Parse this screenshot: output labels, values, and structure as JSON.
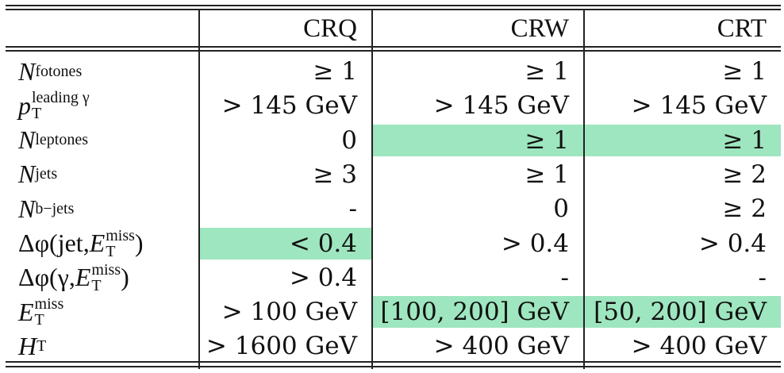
{
  "columns": [
    "CRQ",
    "CRW",
    "CRT"
  ],
  "rows": [
    {
      "label": {
        "main": "N",
        "sub": "fotones"
      },
      "values": [
        "≥ 1",
        "≥ 1",
        "≥ 1"
      ],
      "highlight": [
        false,
        false,
        false
      ]
    },
    {
      "label": {
        "main": "p",
        "sub": "T",
        "sup": "leading γ"
      },
      "values": [
        "> 145 GeV",
        "> 145 GeV",
        "> 145 GeV"
      ],
      "highlight": [
        false,
        false,
        false
      ]
    },
    {
      "label": {
        "main": "N",
        "sub": "leptones"
      },
      "values": [
        "0",
        "≥ 1",
        "≥ 1"
      ],
      "highlight": [
        false,
        true,
        true
      ]
    },
    {
      "label": {
        "main": "N",
        "sub": "jets"
      },
      "values": [
        "≥ 3",
        "≥ 1",
        "≥ 2"
      ],
      "highlight": [
        false,
        false,
        false
      ]
    },
    {
      "label": {
        "main": "N",
        "sub": "b−jets"
      },
      "values": [
        "-",
        "0",
        "≥ 2"
      ],
      "highlight": [
        false,
        false,
        false
      ]
    },
    {
      "label": {
        "pre": "Δφ(jet, ",
        "main": "E",
        "sub": "T",
        "sup": "miss",
        "post": ")"
      },
      "values": [
        "< 0.4",
        "> 0.4",
        "> 0.4"
      ],
      "highlight": [
        true,
        false,
        false
      ]
    },
    {
      "label": {
        "pre": "Δφ(γ, ",
        "main": "E",
        "sub": "T",
        "sup": "miss",
        "post": ")"
      },
      "values": [
        "> 0.4",
        "-",
        "-"
      ],
      "highlight": [
        false,
        false,
        false
      ]
    },
    {
      "label": {
        "main": "E",
        "sub": "T",
        "sup": "miss"
      },
      "values": [
        "> 100 GeV",
        "[100, 200]  GeV",
        "[50, 200]  GeV"
      ],
      "highlight": [
        false,
        true,
        true
      ]
    },
    {
      "label": {
        "main": "H",
        "sub": "T"
      },
      "values": [
        "> 1600 GeV",
        "> 400 GeV",
        "> 400 GeV"
      ],
      "highlight": [
        false,
        false,
        false
      ]
    }
  ],
  "colors": {
    "highlight": "#9ee6bf",
    "rule": "#222222"
  }
}
